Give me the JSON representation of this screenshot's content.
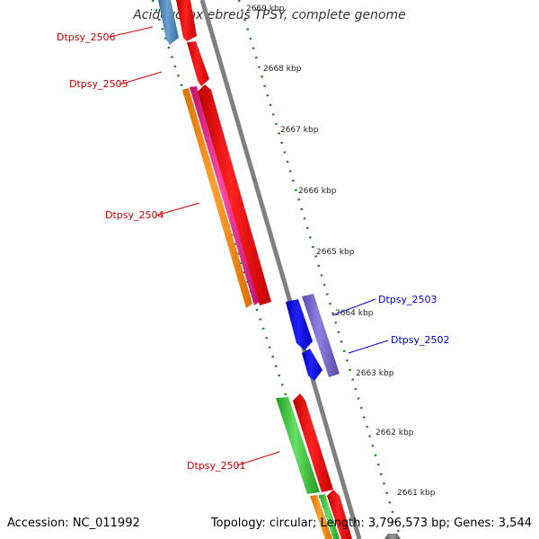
{
  "title": "Acidovorax ebreus TPSY, complete genome",
  "footer": {
    "accession": "Accession: NC_011992",
    "summary": "Topology: circular; Length: 3,796,573 bp; Genes: 3,544"
  },
  "ruler_ticks": [
    "2669 kbp",
    "2668 kbp",
    "2667 kbp",
    "2666 kbp",
    "2665 kbp",
    "2664 kbp",
    "2663 kbp",
    "2662 kbp",
    "2661 kbp"
  ],
  "genes": [
    {
      "label": "Dtpsy_2506",
      "strand": "reverse",
      "color": "#cc0000"
    },
    {
      "label": "Dtpsy_2505",
      "strand": "reverse",
      "color": "#cc0000"
    },
    {
      "label": "Dtpsy_2504",
      "strand": "reverse",
      "color": "#cc0000"
    },
    {
      "label": "Dtpsy_2503",
      "strand": "forward",
      "color": "#0000cc"
    },
    {
      "label": "Dtpsy_2502",
      "strand": "forward",
      "color": "#0000cc"
    },
    {
      "label": "Dtpsy_2501",
      "strand": "reverse",
      "color": "#cc0000"
    }
  ],
  "colors": {
    "backbone": "#777777",
    "ruler": "#1a7a1a",
    "cds_forward": "#0000ee",
    "cds_reverse": "#ee0000",
    "gene_pink": "#e62e8c",
    "orange": "#ff8c00",
    "green": "#33cc33",
    "purple": "#7b68cc",
    "steel": "#4682b4"
  }
}
